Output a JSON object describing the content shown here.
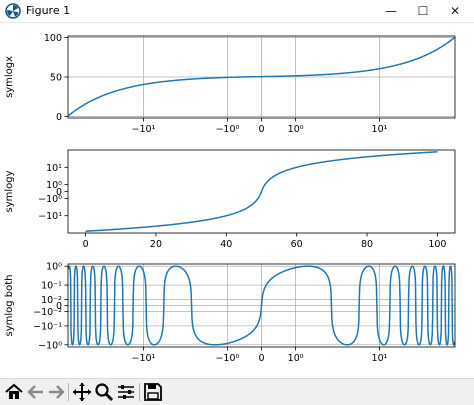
{
  "window": {
    "title": "Figure 1",
    "minimize_symbol": "—",
    "maximize_symbol": "☐",
    "close_symbol": "✕"
  },
  "toolbar": {
    "items": [
      "home-icon",
      "back-arrow-icon",
      "forward-arrow-icon",
      "pan-icon",
      "zoom-icon",
      "subplots-config-icon",
      "save-icon"
    ]
  },
  "colors": {
    "line": "#1f77b4",
    "grid": "#b0b0b0",
    "toolbar_bg": "#f0f0f0"
  },
  "chart_data": [
    {
      "type": "line",
      "ylabel": "symlogx",
      "xscale": "symlog",
      "yscale": "linear",
      "grid": true,
      "xlim": [
        -50,
        50
      ],
      "ylim": [
        -2,
        102
      ],
      "xticks": [
        -10,
        -1,
        0,
        1,
        10
      ],
      "xtick_labels": [
        "−10¹",
        "−10⁰",
        "0",
        "10⁰",
        "10¹"
      ],
      "yticks": [
        0,
        50,
        100
      ],
      "ytick_labels": [
        "0",
        "50",
        "100"
      ],
      "series": [
        {
          "x": [
            -49.5,
            49.5
          ],
          "y": [
            0,
            100
          ],
          "kind": "x_plus_50"
        }
      ]
    },
    {
      "type": "line",
      "ylabel": "symlogy",
      "xscale": "linear",
      "yscale": "symlog",
      "grid": false,
      "xlim": [
        -5,
        105
      ],
      "ylim": [
        -60,
        60
      ],
      "xticks": [
        0,
        20,
        40,
        60,
        80,
        100
      ],
      "xtick_labels": [
        "0",
        "20",
        "40",
        "60",
        "80",
        "100"
      ],
      "yticks": [
        -10,
        -1,
        0,
        1,
        10
      ],
      "ytick_labels": [
        "−10¹",
        "−10⁰",
        "0",
        "10⁰",
        "10¹"
      ],
      "series": [
        {
          "x": [
            0,
            100
          ],
          "y": [
            -50,
            50
          ],
          "kind": "identity_minus_50"
        }
      ]
    },
    {
      "type": "line",
      "ylabel": "symlog both",
      "xscale": "symlog",
      "yscale": "symlog",
      "grid": true,
      "xlim": [
        -50,
        50
      ],
      "ylim": [
        -1.3,
        1.3
      ],
      "xticks": [
        -10,
        -1,
        0,
        1,
        10
      ],
      "xtick_labels": [
        "−10¹",
        "−10⁰",
        "0",
        "10⁰",
        "10¹"
      ],
      "yticks": [
        1,
        0.1,
        0.01,
        0,
        -0.01,
        -0.1,
        -1
      ],
      "ytick_labels": [
        "10⁰",
        "10⁻¹",
        "10⁻²",
        "0",
        "−10⁻²",
        "−10⁻¹",
        "−10⁰"
      ],
      "series": [
        {
          "x": [
            -49.5,
            49.5
          ],
          "y": [
            -1,
            1
          ],
          "kind": "sin_x"
        }
      ]
    }
  ]
}
